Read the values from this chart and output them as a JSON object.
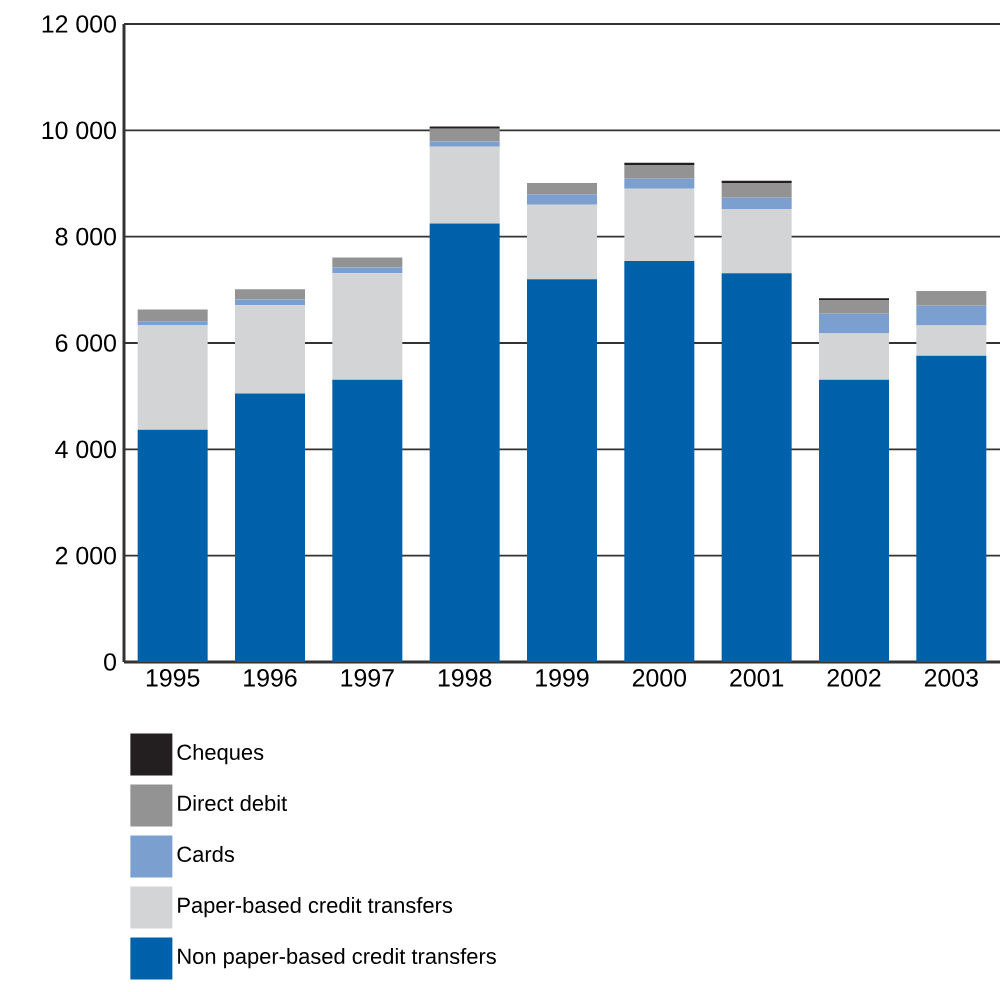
{
  "chart_data": {
    "type": "bar",
    "stacked": true,
    "categories": [
      "1995",
      "1996",
      "1997",
      "1998",
      "1999",
      "2000",
      "2001",
      "2002",
      "2003"
    ],
    "series": [
      {
        "name": "Non paper-based credit transfers",
        "color": "#0061ab",
        "values": [
          4370,
          5050,
          5310,
          8250,
          7200,
          7540,
          7310,
          5310,
          5760
        ]
      },
      {
        "name": "Paper-based credit transfers",
        "color": "#d3d4d6",
        "values": [
          1970,
          1660,
          2000,
          1440,
          1400,
          1360,
          1210,
          870,
          570
        ]
      },
      {
        "name": "Cards",
        "color": "#7b9fcf",
        "values": [
          60,
          110,
          110,
          100,
          200,
          190,
          210,
          370,
          370
        ]
      },
      {
        "name": "Direct debit",
        "color": "#939393",
        "values": [
          230,
          190,
          190,
          240,
          210,
          260,
          280,
          250,
          280
        ]
      },
      {
        "name": "Cheques",
        "color": "#231f20",
        "values": [
          0,
          0,
          0,
          40,
          0,
          40,
          40,
          40,
          0
        ]
      }
    ],
    "ylim": [
      0,
      12000
    ],
    "yticks": [
      0,
      {
        "value": 2000,
        "label": "2 000"
      },
      {
        "value": 4000,
        "label": "4 000"
      },
      {
        "value": 6000,
        "label": "6 000"
      },
      {
        "value": 8000,
        "label": "8 000"
      },
      {
        "value": 10000,
        "label": "10 000"
      },
      {
        "value": 12000,
        "label": "12 000"
      }
    ],
    "grid": "y",
    "legend": "bottom"
  }
}
